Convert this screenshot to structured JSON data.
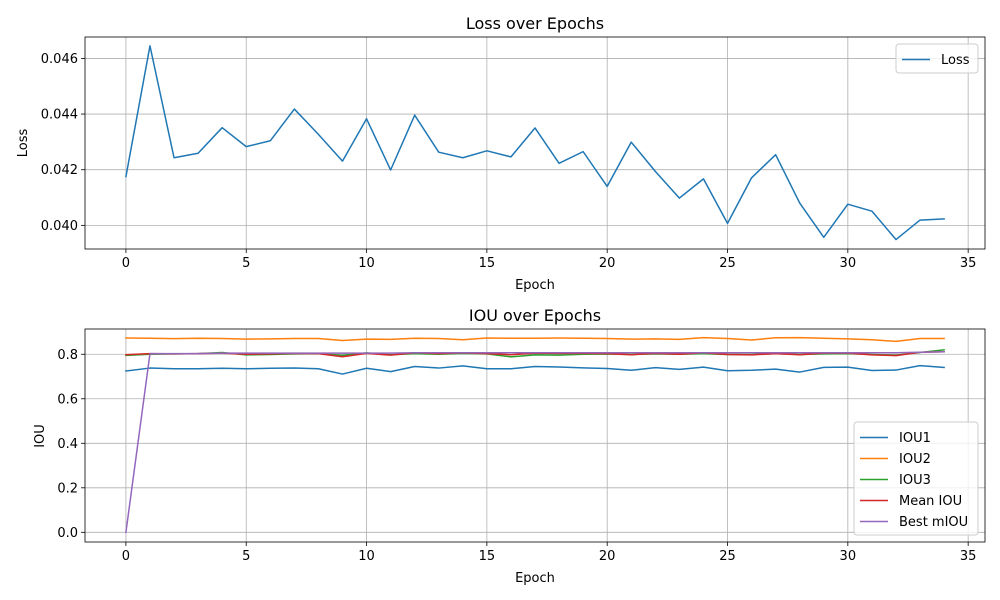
{
  "chart_data": [
    {
      "type": "line",
      "title": "Loss over Epochs",
      "xlabel": "Epoch",
      "ylabel": "Loss",
      "xlim": [
        -1.7,
        35.7
      ],
      "ylim": [
        0.03915,
        0.04677
      ],
      "xticks": [
        0,
        5,
        10,
        15,
        20,
        25,
        30,
        35
      ],
      "xtick_labels": [
        "0",
        "5",
        "10",
        "15",
        "20",
        "25",
        "30",
        "35"
      ],
      "yticks": [
        0.04,
        0.042,
        0.044,
        0.046
      ],
      "ytick_labels": [
        "0.040",
        "0.042",
        "0.044",
        "0.046"
      ],
      "grid": true,
      "legend": "top-right",
      "x": [
        0,
        1,
        2,
        3,
        4,
        5,
        6,
        7,
        8,
        9,
        10,
        11,
        12,
        13,
        14,
        15,
        16,
        17,
        18,
        19,
        20,
        21,
        22,
        23,
        24,
        25,
        26,
        27,
        28,
        29,
        30,
        31,
        32,
        33,
        34
      ],
      "series": [
        {
          "name": "Loss",
          "color": "#1f77b4",
          "values": [
            0.04175,
            0.04645,
            0.04243,
            0.04259,
            0.04351,
            0.04283,
            0.04304,
            0.04418,
            0.04327,
            0.04231,
            0.04383,
            0.04199,
            0.04396,
            0.04263,
            0.04243,
            0.04268,
            0.04246,
            0.0435,
            0.04223,
            0.04265,
            0.0414,
            0.04299,
            0.04194,
            0.04098,
            0.04167,
            0.04007,
            0.04171,
            0.04254,
            0.0408,
            0.03957,
            0.04076,
            0.04051,
            0.03949,
            0.04019,
            0.04023
          ]
        }
      ]
    },
    {
      "type": "line",
      "title": "IOU over Epochs",
      "xlabel": "Epoch",
      "ylabel": "IOU",
      "xlim": [
        -1.7,
        35.7
      ],
      "ylim": [
        -0.0435,
        0.9135
      ],
      "xticks": [
        0,
        5,
        10,
        15,
        20,
        25,
        30,
        35
      ],
      "xtick_labels": [
        "0",
        "5",
        "10",
        "15",
        "20",
        "25",
        "30",
        "35"
      ],
      "yticks": [
        0.0,
        0.2,
        0.4,
        0.6,
        0.8
      ],
      "ytick_labels": [
        "0.0",
        "0.2",
        "0.4",
        "0.6",
        "0.8"
      ],
      "grid": true,
      "legend": "bottom-right",
      "x": [
        0,
        1,
        2,
        3,
        4,
        5,
        6,
        7,
        8,
        9,
        10,
        11,
        12,
        13,
        14,
        15,
        16,
        17,
        18,
        19,
        20,
        21,
        22,
        23,
        24,
        25,
        26,
        27,
        28,
        29,
        30,
        31,
        32,
        33,
        34
      ],
      "series": [
        {
          "name": "IOU1",
          "color": "#1f77b4",
          "values": [
            0.725,
            0.738,
            0.735,
            0.735,
            0.737,
            0.735,
            0.737,
            0.738,
            0.735,
            0.711,
            0.737,
            0.722,
            0.745,
            0.738,
            0.748,
            0.735,
            0.735,
            0.745,
            0.743,
            0.739,
            0.736,
            0.728,
            0.74,
            0.732,
            0.742,
            0.726,
            0.728,
            0.733,
            0.72,
            0.741,
            0.742,
            0.727,
            0.729,
            0.749,
            0.741
          ]
        },
        {
          "name": "IOU2",
          "color": "#ff7f0e",
          "values": [
            0.873,
            0.872,
            0.87,
            0.872,
            0.871,
            0.868,
            0.869,
            0.871,
            0.871,
            0.862,
            0.868,
            0.867,
            0.872,
            0.871,
            0.865,
            0.873,
            0.872,
            0.872,
            0.873,
            0.872,
            0.871,
            0.868,
            0.869,
            0.867,
            0.875,
            0.871,
            0.864,
            0.874,
            0.875,
            0.872,
            0.869,
            0.865,
            0.858,
            0.871,
            0.871
          ]
        },
        {
          "name": "IOU3",
          "color": "#2ca02c",
          "values": [
            0.795,
            0.8,
            0.802,
            0.803,
            0.808,
            0.797,
            0.799,
            0.802,
            0.803,
            0.795,
            0.806,
            0.798,
            0.803,
            0.8,
            0.804,
            0.802,
            0.788,
            0.797,
            0.796,
            0.8,
            0.801,
            0.799,
            0.802,
            0.8,
            0.803,
            0.799,
            0.799,
            0.803,
            0.799,
            0.802,
            0.803,
            0.799,
            0.796,
            0.808,
            0.82
          ]
        },
        {
          "name": "Mean IOU",
          "color": "#d62728",
          "values": [
            0.798,
            0.803,
            0.802,
            0.803,
            0.805,
            0.8,
            0.802,
            0.804,
            0.803,
            0.789,
            0.804,
            0.796,
            0.807,
            0.803,
            0.806,
            0.803,
            0.798,
            0.805,
            0.804,
            0.804,
            0.803,
            0.798,
            0.804,
            0.8,
            0.807,
            0.799,
            0.797,
            0.803,
            0.798,
            0.805,
            0.805,
            0.797,
            0.794,
            0.809,
            0.811
          ]
        },
        {
          "name": "Best mIOU",
          "color": "#9467bd",
          "values": [
            0.0,
            0.803,
            0.803,
            0.803,
            0.805,
            0.805,
            0.805,
            0.805,
            0.805,
            0.805,
            0.805,
            0.805,
            0.807,
            0.807,
            0.807,
            0.807,
            0.807,
            0.807,
            0.807,
            0.807,
            0.807,
            0.807,
            0.807,
            0.807,
            0.807,
            0.807,
            0.807,
            0.807,
            0.807,
            0.807,
            0.807,
            0.807,
            0.807,
            0.809,
            0.811
          ]
        }
      ]
    }
  ]
}
